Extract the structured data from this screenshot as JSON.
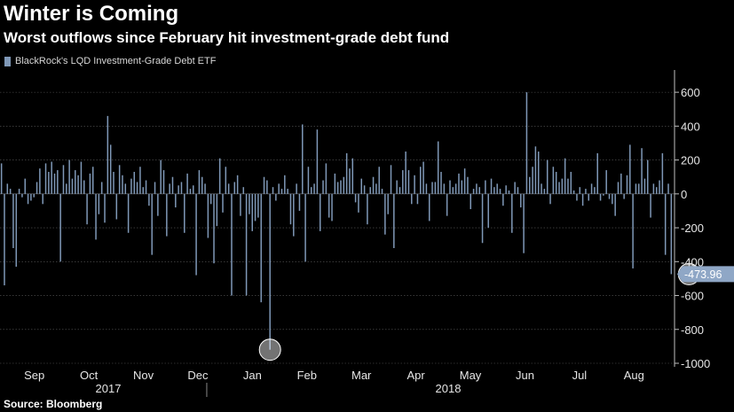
{
  "header": {
    "title": "Winter is Coming",
    "subtitle": "Worst outflows since February hit investment-grade debt fund"
  },
  "legend": {
    "label": "BlackRock's LQD Investment-Grade Debt ETF"
  },
  "footer": {
    "source": "Source: Bloomberg"
  },
  "colors": {
    "background": "#000000",
    "bar": "#7f98b7",
    "grid": "#5a5a5a",
    "highlight_badge": "#8fa7c6"
  },
  "chart_data": {
    "type": "bar",
    "title": "Winter is Coming",
    "subtitle": "Worst outflows since February hit investment-grade debt fund",
    "series": [
      {
        "name": "BlackRock's LQD Investment-Grade Debt ETF",
        "values": [
          180,
          -540,
          60,
          30,
          -320,
          -430,
          30,
          -20,
          90,
          -60,
          -40,
          -20,
          70,
          150,
          -60,
          180,
          130,
          190,
          120,
          140,
          -400,
          170,
          60,
          200,
          90,
          140,
          110,
          190,
          80,
          -180,
          120,
          160,
          -270,
          -120,
          70,
          -170,
          460,
          290,
          130,
          -150,
          170,
          110,
          60,
          -230,
          90,
          130,
          70,
          160,
          40,
          80,
          -70,
          -360,
          70,
          -130,
          200,
          140,
          -250,
          60,
          100,
          -80,
          50,
          70,
          -230,
          120,
          30,
          50,
          -480,
          140,
          100,
          60,
          -260,
          -60,
          -410,
          -190,
          210,
          -110,
          160,
          60,
          -600,
          70,
          110,
          -130,
          40,
          -600,
          -120,
          -220,
          -160,
          -140,
          -640,
          100,
          80,
          -920,
          40,
          -40,
          60,
          30,
          110,
          30,
          -180,
          -250,
          60,
          -100,
          410,
          -400,
          160,
          40,
          60,
          380,
          -220,
          80,
          180,
          -140,
          -160,
          120,
          70,
          80,
          100,
          240,
          150,
          210,
          -50,
          -110,
          90,
          50,
          -180,
          40,
          100,
          60,
          160,
          30,
          -240,
          -120,
          170,
          -320,
          80,
          40,
          140,
          250,
          140,
          -60,
          110,
          -60,
          160,
          190,
          60,
          -160,
          70,
          70,
          310,
          130,
          60,
          -130,
          80,
          40,
          60,
          120,
          80,
          150,
          100,
          -90,
          30,
          60,
          40,
          -290,
          80,
          -200,
          90,
          40,
          60,
          30,
          -70,
          50,
          20,
          -230,
          70,
          40,
          -80,
          -350,
          600,
          100,
          160,
          280,
          250,
          60,
          30,
          200,
          -60,
          160,
          130,
          70,
          90,
          210,
          90,
          130,
          20,
          -40,
          40,
          -70,
          30,
          -40,
          60,
          40,
          240,
          -40,
          -10,
          140,
          -30,
          -60,
          -130,
          70,
          120,
          -30,
          110,
          290,
          -440,
          60,
          60,
          270,
          90,
          200,
          -140,
          60,
          40,
          80,
          240,
          -360,
          60,
          -473.96
        ]
      }
    ],
    "ylim": [
      -1000,
      700
    ],
    "yticks": [
      600,
      400,
      200,
      0,
      -200,
      -400,
      -600,
      -800,
      -1000
    ],
    "xlabel": "",
    "ylabel": "",
    "month_labels": [
      "Sep",
      "Oct",
      "Nov",
      "Dec",
      "Jan",
      "Feb",
      "Mar",
      "Apr",
      "May",
      "Jun",
      "Jul",
      "Aug"
    ],
    "year_labels": [
      "2017",
      "2018"
    ],
    "last_value_label": "-473.96",
    "highlighted_points": [
      {
        "index": 91,
        "value": -920
      },
      {
        "index": 233,
        "value": -473.96
      }
    ],
    "grid": true,
    "legend_position": "top-left"
  }
}
